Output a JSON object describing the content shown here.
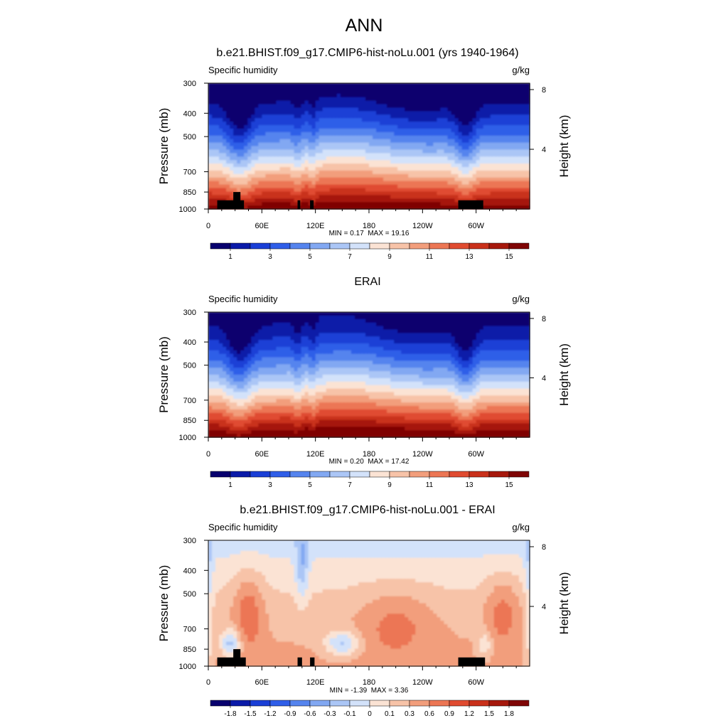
{
  "figure": {
    "title": "ANN"
  },
  "chart_data": [
    {
      "type": "heatmap",
      "title": "b.e21.BHIST.f09_g17.CMIP6-hist-noLu.001 (yrs 1940-1964)",
      "left_label": "Specific humidity",
      "right_label": "g/kg",
      "ylabel": "Pressure (mb)",
      "ylabel_right": "Height (km)",
      "x_ticks": [
        "0",
        "60E",
        "120E",
        "180",
        "120W",
        "60W"
      ],
      "x_tick_values": [
        0,
        60,
        120,
        180,
        240,
        300
      ],
      "xlim": [
        0,
        360
      ],
      "y_ticks": [
        "300",
        "400",
        "500",
        "700",
        "850",
        "1000"
      ],
      "y_tick_values": [
        300,
        400,
        500,
        700,
        850,
        1000
      ],
      "ylim": [
        300,
        1000
      ],
      "y_right_ticks": [
        "8",
        "4"
      ],
      "y_right_values": [
        8,
        4
      ],
      "min_label": "MIN =",
      "min_value": "0.17",
      "max_label": "MAX =",
      "max_value": "19.16",
      "colorbar_ticks": [
        "1",
        "3",
        "5",
        "7",
        "9",
        "11",
        "13",
        "15"
      ],
      "colorbar_values": [
        1,
        3,
        5,
        7,
        9,
        11,
        13,
        15
      ],
      "colorbar_levels": 16,
      "colorbar_mode": "sequential",
      "topography": [
        {
          "lon_min": 10,
          "lon_max": 40,
          "p_top": 920
        },
        {
          "lon_min": 28,
          "lon_max": 36,
          "p_top": 850
        },
        {
          "lon_min": 100,
          "lon_max": 103,
          "p_top": 920
        },
        {
          "lon_min": 114,
          "lon_max": 118,
          "p_top": 920
        },
        {
          "lon_min": 280,
          "lon_max": 308,
          "p_top": 920
        }
      ]
    },
    {
      "type": "heatmap",
      "title": "ERAI",
      "left_label": "Specific humidity",
      "right_label": "g/kg",
      "ylabel": "Pressure (mb)",
      "ylabel_right": "Height (km)",
      "x_ticks": [
        "0",
        "60E",
        "120E",
        "180",
        "120W",
        "60W"
      ],
      "x_tick_values": [
        0,
        60,
        120,
        180,
        240,
        300
      ],
      "xlim": [
        0,
        360
      ],
      "y_ticks": [
        "300",
        "400",
        "500",
        "700",
        "850",
        "1000"
      ],
      "y_tick_values": [
        300,
        400,
        500,
        700,
        850,
        1000
      ],
      "ylim": [
        300,
        1000
      ],
      "y_right_ticks": [
        "8",
        "4"
      ],
      "y_right_values": [
        8,
        4
      ],
      "min_label": "MIN =",
      "min_value": "0.20",
      "max_label": "MAX =",
      "max_value": "17.42",
      "colorbar_ticks": [
        "1",
        "3",
        "5",
        "7",
        "9",
        "11",
        "13",
        "15"
      ],
      "colorbar_values": [
        1,
        3,
        5,
        7,
        9,
        11,
        13,
        15
      ],
      "colorbar_levels": 16,
      "colorbar_mode": "sequential",
      "topography": []
    },
    {
      "type": "heatmap",
      "title": "b.e21.BHIST.f09_g17.CMIP6-hist-noLu.001 - ERAI",
      "left_label": "Specific humidity",
      "right_label": "g/kg",
      "ylabel": "Pressure (mb)",
      "ylabel_right": "Height (km)",
      "x_ticks": [
        "0",
        "60E",
        "120E",
        "180",
        "120W",
        "60W"
      ],
      "x_tick_values": [
        0,
        60,
        120,
        180,
        240,
        300
      ],
      "xlim": [
        0,
        360
      ],
      "y_ticks": [
        "300",
        "400",
        "500",
        "700",
        "850",
        "1000"
      ],
      "y_tick_values": [
        300,
        400,
        500,
        700,
        850,
        1000
      ],
      "ylim": [
        300,
        1000
      ],
      "y_right_ticks": [
        "8",
        "4"
      ],
      "y_right_values": [
        8,
        4
      ],
      "min_label": "MIN =",
      "min_value": "-1.39",
      "max_label": "MAX =",
      "max_value": "3.36",
      "colorbar_ticks": [
        "-1.8",
        "-1.5",
        "-1.2",
        "-0.9",
        "-0.6",
        "-0.3",
        "-0.1",
        "0",
        "0.1",
        "0.3",
        "0.6",
        "0.9",
        "1.2",
        "1.5",
        "1.8"
      ],
      "colorbar_levels": 16,
      "colorbar_mode": "diverging",
      "topography": [
        {
          "lon_min": 10,
          "lon_max": 42,
          "p_top": 920
        },
        {
          "lon_min": 28,
          "lon_max": 36,
          "p_top": 850
        },
        {
          "lon_min": 100,
          "lon_max": 105,
          "p_top": 920
        },
        {
          "lon_min": 114,
          "lon_max": 119,
          "p_top": 920
        },
        {
          "lon_min": 280,
          "lon_max": 310,
          "p_top": 920
        }
      ]
    }
  ],
  "colors": {
    "palette": [
      "#08006e",
      "#0a1aa8",
      "#1a3fd6",
      "#2f5ee8",
      "#5584ee",
      "#82a8f2",
      "#abc6f6",
      "#d3e2fa",
      "#fbe3d4",
      "#f7c3a8",
      "#f29e7c",
      "#ec7654",
      "#e04b30",
      "#c9301a",
      "#a6180c",
      "#7f0505"
    ],
    "topography": "#000000"
  }
}
